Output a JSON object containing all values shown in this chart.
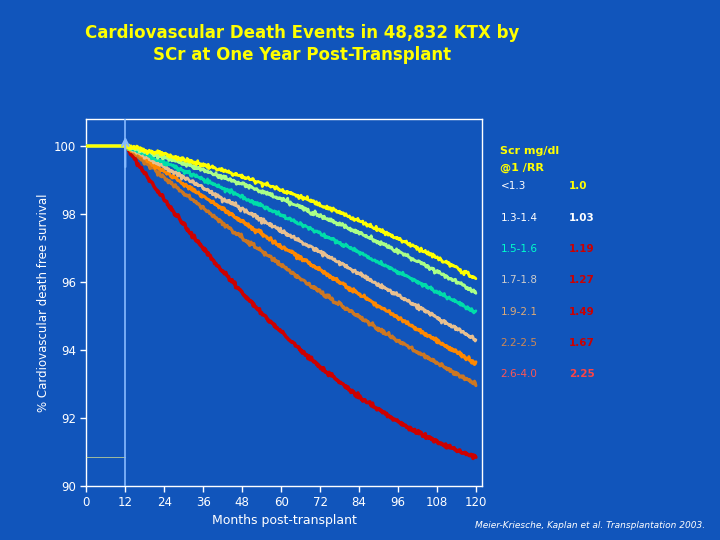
{
  "title_line1": "Cardiovascular Death Events in 48,832 KTX by",
  "title_line2": "SCr at One Year Post-Transplant",
  "title_color": "#FFFF00",
  "background_color": "#1155BB",
  "plot_bg_color": "#1155BB",
  "xlabel": "Months post-transplant",
  "ylabel": "% Cardiovascular death free survival",
  "yticks": [
    90,
    92,
    94,
    96,
    98,
    100
  ],
  "xticks": [
    0,
    12,
    24,
    36,
    48,
    60,
    72,
    84,
    96,
    108,
    120
  ],
  "xlim": [
    0,
    122
  ],
  "ylim": [
    90.0,
    100.8
  ],
  "series": [
    {
      "label": "<1.3",
      "rr": "1.0",
      "label_color": "#FFFFFF",
      "rr_color": "#FFFF00",
      "color": "#FFFF00",
      "end_y": 96.1,
      "mid_y": 98.5
    },
    {
      "label": "1.3-1.4",
      "rr": "1.03",
      "label_color": "#FFFFFF",
      "rr_color": "#FFFFFF",
      "color": "#AAFF88",
      "end_y": 95.7,
      "mid_y": 98.2
    },
    {
      "label": "1.5-1.6",
      "rr": "1.19",
      "label_color": "#00FFCC",
      "rr_color": "#CC0000",
      "color": "#00DDAA",
      "end_y": 95.1,
      "mid_y": 97.7
    },
    {
      "label": "1.7-1.8",
      "rr": "1.27",
      "label_color": "#CCCCCC",
      "rr_color": "#CC0000",
      "color": "#E8C090",
      "end_y": 94.3,
      "mid_y": 97.2
    },
    {
      "label": "1.9-2.1",
      "rr": "1.49",
      "label_color": "#DDAA77",
      "rr_color": "#CC0000",
      "color": "#FF8800",
      "end_y": 93.6,
      "mid_y": 96.7
    },
    {
      "label": "2.2-2.5",
      "rr": "1.67",
      "label_color": "#CC8855",
      "rr_color": "#CC0000",
      "color": "#CC7722",
      "end_y": 93.0,
      "mid_y": 96.1
    },
    {
      "label": "2.6-4.0",
      "rr": "2.25",
      "label_color": "#FF5555",
      "rr_color": "#FF4444",
      "color": "#CC0000",
      "end_y": 90.85,
      "mid_y": 94.0
    }
  ],
  "legend_title_color": "#FFFF00",
  "citation": "Meier-Kriesche, Kaplan et al. Transplantation 2003.",
  "citation_color": "#FFFFFF",
  "tick_color": "#FFFFFF",
  "spine_color": "#FFFFFF",
  "arrow_color": "#88BBFF",
  "vline_color": "#88BBFF",
  "hline_color": "#FFFF88"
}
